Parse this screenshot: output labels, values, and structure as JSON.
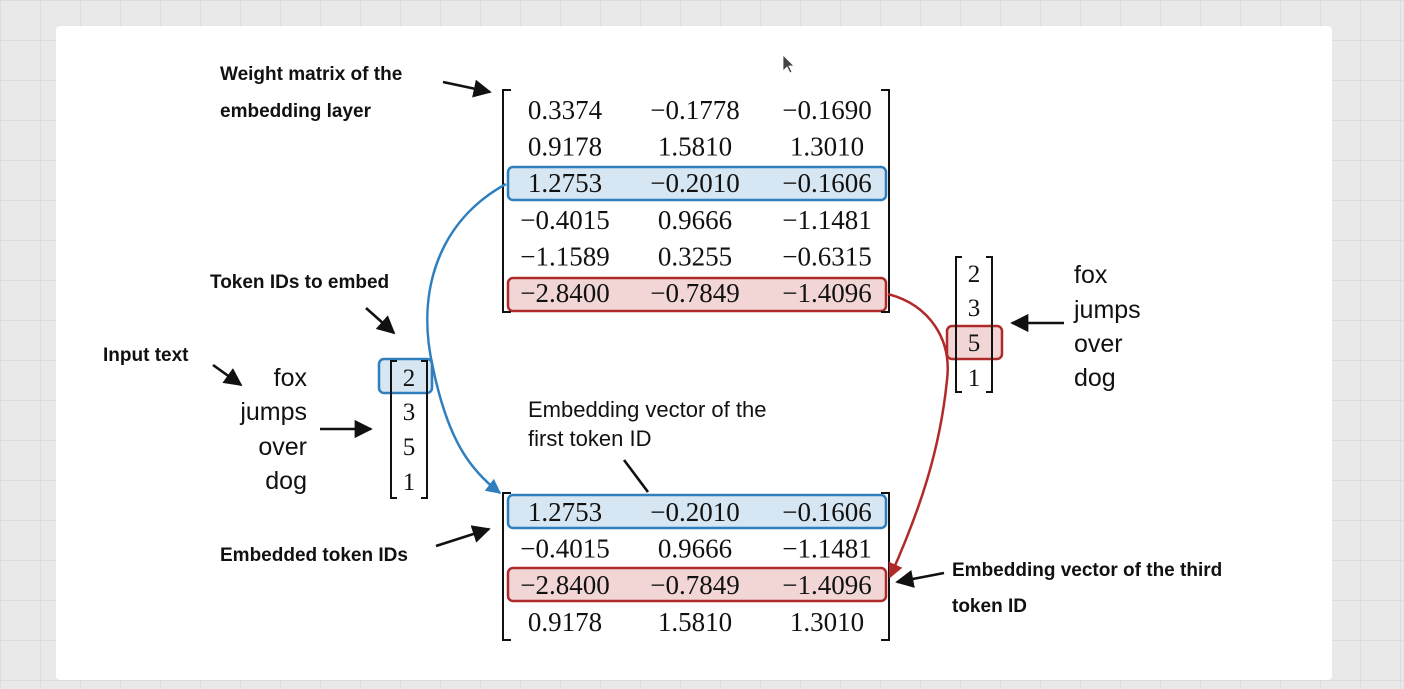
{
  "labels": {
    "weight_matrix_line1": "Weight matrix of the",
    "weight_matrix_line2": "embedding layer",
    "token_ids_to_embed": "Token IDs to embed",
    "input_text": "Input text",
    "embedded_token_ids": "Embedded token IDs",
    "embedding_first_line1": "Embedding vector of the",
    "embedding_first_line2": "first token ID",
    "embedding_third_line1": "Embedding vector of the third",
    "embedding_third_line2": "token ID"
  },
  "input_words": [
    "fox",
    "jumps",
    "over",
    "dog"
  ],
  "token_ids": [
    "2",
    "3",
    "5",
    "1"
  ],
  "weight_matrix": [
    [
      "0.3374",
      "−0.1778",
      "−0.1690"
    ],
    [
      "0.9178",
      "1.5810",
      "1.3010"
    ],
    [
      "1.2753",
      "−0.2010",
      "−0.1606"
    ],
    [
      "−0.4015",
      "0.9666",
      "−1.1481"
    ],
    [
      "−1.1589",
      "0.3255",
      "−0.6315"
    ],
    [
      "−2.8400",
      "−0.7849",
      "−1.4096"
    ]
  ],
  "embedded_matrix": [
    [
      "1.2753",
      "−0.2010",
      "−0.1606"
    ],
    [
      "−0.4015",
      "0.9666",
      "−1.1481"
    ],
    [
      "−2.8400",
      "−0.7849",
      "−1.4096"
    ],
    [
      "0.9178",
      "1.5810",
      "1.3010"
    ]
  ],
  "highlights": {
    "blue": "#2f7fbf",
    "blue_fill": "#d6e6f2",
    "red": "#b02a2a",
    "red_fill": "#f2d6d6"
  }
}
